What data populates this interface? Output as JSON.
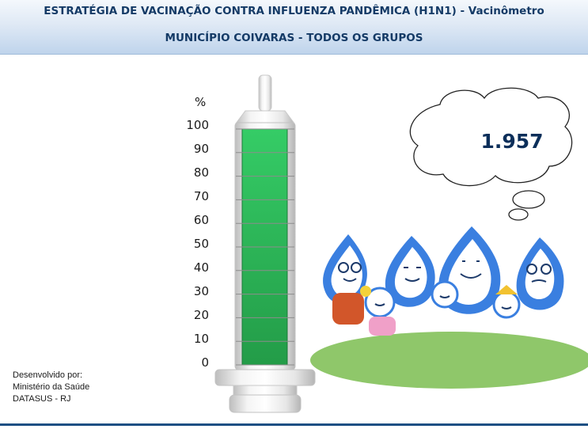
{
  "header": {
    "title": "ESTRATÉGIA DE VACINAÇÃO CONTRA INFLUENZA PANDÊMICA (H1N1) - Vacinômetro",
    "subtitle": "MUNICÍPIO COIVARAS - TODOS OS GRUPOS"
  },
  "gauge": {
    "unit_label": "%",
    "scale": [
      "100",
      "90",
      "80",
      "70",
      "60",
      "50",
      "40",
      "30",
      "20",
      "10",
      "0"
    ],
    "fill_percent": 100,
    "fill_color": "#2fbf5c"
  },
  "cloud": {
    "value": "1.957"
  },
  "credits": {
    "line1": "Desenvolvido por:",
    "line2": "Ministério da Saúde",
    "line3": "DATASUS - RJ"
  },
  "colors": {
    "brand_blue": "#1d4f83",
    "drop_blue": "#3a7fe0",
    "grass": "#8fc76a"
  }
}
